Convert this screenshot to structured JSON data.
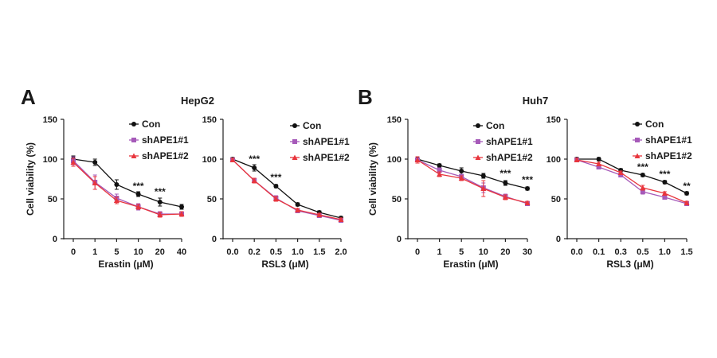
{
  "figure": {
    "panel_labels": [
      "A",
      "B"
    ],
    "colors": {
      "con": "#111111",
      "shAPE1#1": "#a65ab9",
      "shAPE1#2": "#e8353d"
    }
  },
  "chart_data": [
    {
      "type": "line",
      "panel": "A",
      "title": "HepG2",
      "xlabel": "Erastin (μM)",
      "ylabel": "Cell viability  (%)",
      "categories": [
        "0",
        "1",
        "5",
        "10",
        "20",
        "40"
      ],
      "ylim": [
        0,
        150
      ],
      "yticks": [
        "0",
        "50",
        "100",
        "150"
      ],
      "legend_position": "top-right",
      "series": [
        {
          "name": "Con",
          "color": "#111111",
          "marker": "circle",
          "values": [
            100,
            96,
            68,
            56,
            46,
            40
          ],
          "errors": [
            4,
            4,
            6,
            3,
            5,
            3
          ]
        },
        {
          "name": "shAPE1#1",
          "color": "#a65ab9",
          "marker": "square",
          "values": [
            98,
            71,
            51,
            40,
            31,
            31
          ],
          "errors": [
            5,
            9,
            5,
            4,
            3,
            3
          ]
        },
        {
          "name": "shAPE1#2",
          "color": "#e8353d",
          "marker": "triangle",
          "values": [
            96,
            70,
            48,
            40,
            30,
            31
          ],
          "errors": [
            5,
            8,
            4,
            3,
            3,
            3
          ]
        }
      ],
      "annotations": [
        {
          "text": "***",
          "category": "10",
          "y": 62
        },
        {
          "text": "***",
          "category": "20",
          "y": 55
        }
      ]
    },
    {
      "type": "line",
      "panel": "A",
      "title": "",
      "xlabel": "RSL3 (μM)",
      "ylabel": "",
      "categories": [
        "0.0",
        "0.2",
        "0.5",
        "1.0",
        "1.5",
        "2.0"
      ],
      "ylim": [
        0,
        150
      ],
      "yticks": [
        "0",
        "50",
        "100",
        "150"
      ],
      "legend_position": "top-right",
      "series": [
        {
          "name": "Con",
          "color": "#111111",
          "marker": "circle",
          "values": [
            100,
            89,
            66,
            43,
            33,
            26
          ],
          "errors": [
            2,
            4,
            2,
            2,
            2,
            2
          ]
        },
        {
          "name": "shAPE1#1",
          "color": "#a65ab9",
          "marker": "square",
          "values": [
            99,
            73,
            51,
            35,
            29,
            23
          ],
          "errors": [
            2,
            3,
            3,
            2,
            2,
            2
          ]
        },
        {
          "name": "shAPE1#2",
          "color": "#e8353d",
          "marker": "triangle",
          "values": [
            99,
            73,
            50,
            36,
            30,
            24
          ],
          "errors": [
            2,
            3,
            3,
            2,
            2,
            2
          ]
        }
      ],
      "annotations": [
        {
          "text": "***",
          "category": "0.2",
          "y": 96
        },
        {
          "text": "***",
          "category": "0.5",
          "y": 73
        }
      ]
    },
    {
      "type": "line",
      "panel": "B",
      "title": "Huh7",
      "xlabel": "Erastin (μM)",
      "ylabel": "Cell viability  (%)",
      "categories": [
        "0",
        "1",
        "5",
        "10",
        "20",
        "30"
      ],
      "ylim": [
        0,
        150
      ],
      "yticks": [
        "0",
        "50",
        "100",
        "150"
      ],
      "legend_position": "top-right",
      "series": [
        {
          "name": "Con",
          "color": "#111111",
          "marker": "circle",
          "values": [
            100,
            92,
            85,
            79,
            70,
            63
          ],
          "errors": [
            3,
            2,
            4,
            3,
            3,
            2
          ]
        },
        {
          "name": "shAPE1#1",
          "color": "#a65ab9",
          "marker": "square",
          "values": [
            99,
            86,
            78,
            64,
            53,
            44
          ],
          "errors": [
            4,
            3,
            3,
            6,
            3,
            2
          ]
        },
        {
          "name": "shAPE1#2",
          "color": "#e8353d",
          "marker": "triangle",
          "values": [
            99,
            81,
            76,
            63,
            52,
            45
          ],
          "errors": [
            4,
            3,
            3,
            10,
            3,
            2
          ]
        }
      ],
      "annotations": [
        {
          "text": "***",
          "category": "20",
          "y": 78
        },
        {
          "text": "***",
          "category": "30",
          "y": 70
        }
      ]
    },
    {
      "type": "line",
      "panel": "B",
      "title": "",
      "xlabel": "RSL3 (μM)",
      "ylabel": "",
      "categories": [
        "0.0",
        "0.1",
        "0.3",
        "0.5",
        "1.0",
        "1.5"
      ],
      "ylim": [
        0,
        150
      ],
      "yticks": [
        "0",
        "50",
        "100",
        "150"
      ],
      "legend_position": "top-right",
      "series": [
        {
          "name": "Con",
          "color": "#111111",
          "marker": "circle",
          "values": [
            100,
            100,
            86,
            80,
            71,
            57
          ],
          "errors": [
            2,
            2,
            2,
            2,
            2,
            2
          ]
        },
        {
          "name": "shAPE1#1",
          "color": "#a65ab9",
          "marker": "square",
          "values": [
            99,
            90,
            80,
            59,
            52,
            44
          ],
          "errors": [
            2,
            2,
            2,
            3,
            2,
            2
          ]
        },
        {
          "name": "shAPE1#2",
          "color": "#e8353d",
          "marker": "triangle",
          "values": [
            99,
            94,
            83,
            64,
            57,
            45
          ],
          "errors": [
            2,
            2,
            2,
            3,
            2,
            2
          ]
        }
      ],
      "annotations": [
        {
          "text": "***",
          "category": "0.5",
          "y": 86
        },
        {
          "text": "***",
          "category": "1.0",
          "y": 77
        },
        {
          "text": "**",
          "category": "1.5",
          "y": 62
        }
      ]
    }
  ]
}
